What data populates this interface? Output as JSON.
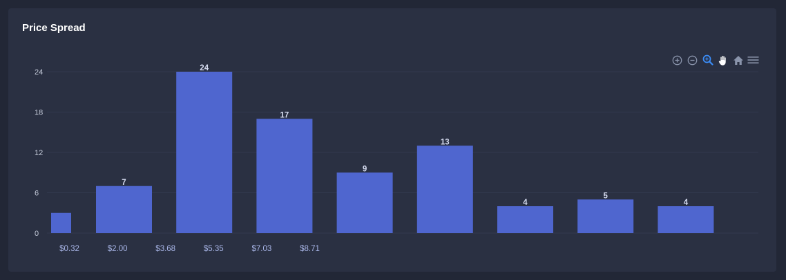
{
  "card": {
    "title": "Price Spread"
  },
  "toolbar": {
    "tools": [
      {
        "name": "zoom-in-icon",
        "active": false
      },
      {
        "name": "zoom-out-icon",
        "active": false
      },
      {
        "name": "zoom-select-icon",
        "active": true
      },
      {
        "name": "pan-hand-icon",
        "active": false
      },
      {
        "name": "home-reset-icon",
        "active": false
      },
      {
        "name": "menu-icon",
        "active": false
      }
    ],
    "colors": {
      "icon": "#8a94ab",
      "active": "#3b8cf6",
      "hand": "#ffffff"
    }
  },
  "chart_data": {
    "type": "bar",
    "title": "Price Spread",
    "xlabel": "",
    "ylabel": "",
    "values": [
      3,
      7,
      24,
      17,
      9,
      13,
      4,
      5,
      4
    ],
    "data_labels": [
      "",
      "7",
      "24",
      "17",
      "9",
      "13",
      "4",
      "5",
      "4"
    ],
    "x_tick_labels": [
      "$0.32",
      "$2.00",
      "$3.68",
      "$5.35",
      "$7.03",
      "$8.71"
    ],
    "y_ticks": [
      0,
      6,
      12,
      18,
      24
    ],
    "ylim": [
      0,
      24
    ],
    "grid": true,
    "legend": "none",
    "bar_color": "#4f66cf"
  }
}
